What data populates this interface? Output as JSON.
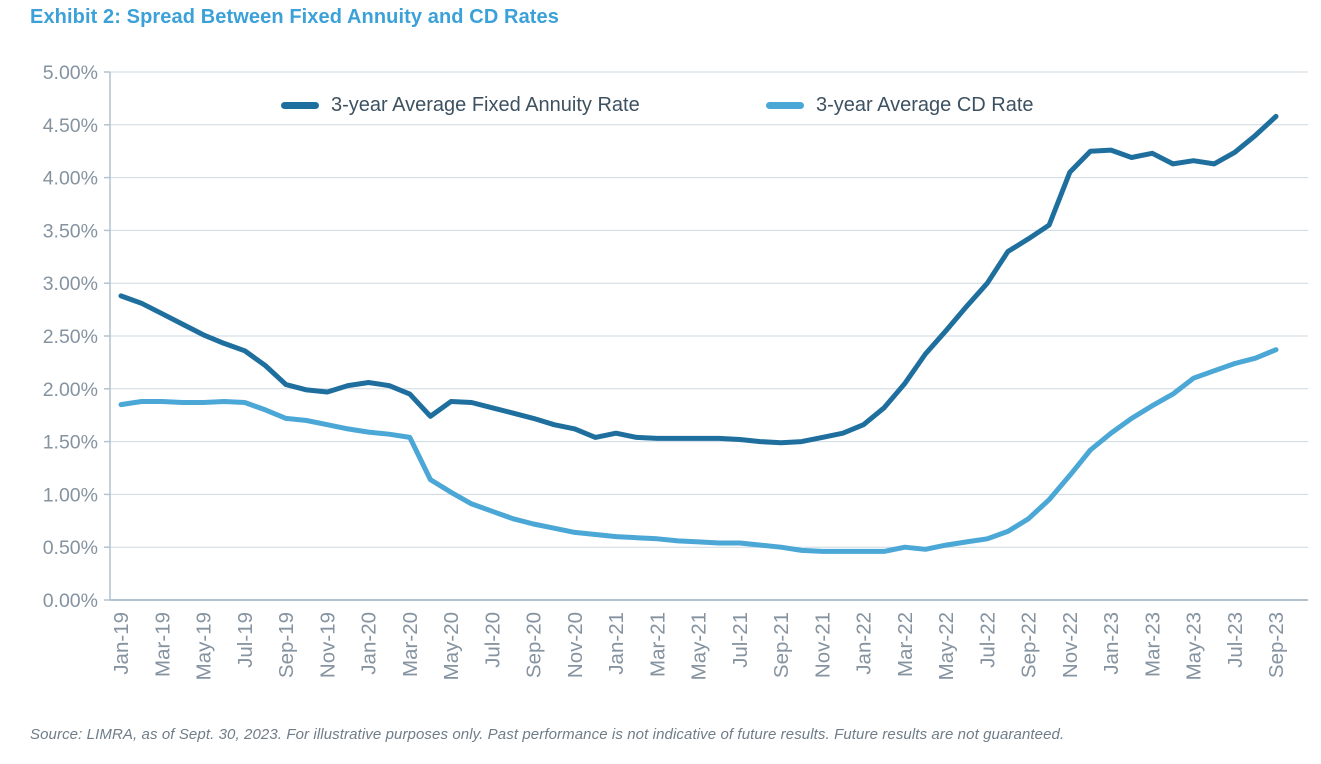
{
  "page": {
    "title": "Exhibit 2: Spread Between Fixed Annuity and CD Rates",
    "source_note": "Source: LIMRA, as of Sept. 30, 2023. For illustrative purposes only. Past performance is not indicative of future results. Future results are not guaranteed."
  },
  "colors": {
    "title": "#3ba1d8",
    "annuity_line": "#1f6f9e",
    "cd_line": "#4ba7d5",
    "axis_text": "#8593a0",
    "legend_text": "#3d5160",
    "gridline": "#ccd9e2",
    "axis_line": "#b2c2ce",
    "source_text": "#6f7d89",
    "background": "#ffffff"
  },
  "chart_data": {
    "type": "line",
    "title": "Exhibit 2: Spread Between Fixed Annuity and CD Rates",
    "xlabel": "",
    "ylabel": "",
    "ylim": [
      0,
      5
    ],
    "y_tick_step": 0.5,
    "grid": "horizontal",
    "legend_position": "top-inside",
    "y_tick_labels": [
      "5.00%",
      "4.50%",
      "4.00%",
      "3.50%",
      "3.00%",
      "2.50%",
      "2.00%",
      "1.50%",
      "1.00%",
      "0.50%",
      "0.00%"
    ],
    "x_tick_labels": [
      "Jan-19",
      "Mar-19",
      "May-19",
      "Jul-19",
      "Sep-19",
      "Nov-19",
      "Jan-20",
      "Mar-20",
      "May-20",
      "Jul-20",
      "Sep-20",
      "Nov-20",
      "Jan-21",
      "Mar-21",
      "May-21",
      "Jul-21",
      "Sep-21",
      "Nov-21",
      "Jan-22",
      "Mar-22",
      "May-22",
      "Jul-22",
      "Sep-22",
      "Nov-22",
      "Jan-23",
      "Mar-23",
      "May-23",
      "Jul-23",
      "Sep-23"
    ],
    "categories": [
      "Jan-19",
      "Feb-19",
      "Mar-19",
      "Apr-19",
      "May-19",
      "Jun-19",
      "Jul-19",
      "Aug-19",
      "Sep-19",
      "Oct-19",
      "Nov-19",
      "Dec-19",
      "Jan-20",
      "Feb-20",
      "Mar-20",
      "Apr-20",
      "May-20",
      "Jun-20",
      "Jul-20",
      "Aug-20",
      "Sep-20",
      "Oct-20",
      "Nov-20",
      "Dec-20",
      "Jan-21",
      "Feb-21",
      "Mar-21",
      "Apr-21",
      "May-21",
      "Jun-21",
      "Jul-21",
      "Aug-21",
      "Sep-21",
      "Oct-21",
      "Nov-21",
      "Dec-21",
      "Jan-22",
      "Feb-22",
      "Mar-22",
      "Apr-22",
      "May-22",
      "Jun-22",
      "Jul-22",
      "Aug-22",
      "Sep-22",
      "Oct-22",
      "Nov-22",
      "Dec-22",
      "Jan-23",
      "Feb-23",
      "Mar-23",
      "Apr-23",
      "May-23",
      "Jun-23",
      "Jul-23",
      "Aug-23",
      "Sep-23"
    ],
    "series": [
      {
        "name": "3-year Average Fixed Annuity Rate",
        "color": "#1f6f9e",
        "values": [
          2.88,
          2.81,
          2.71,
          2.61,
          2.51,
          2.43,
          2.36,
          2.22,
          2.04,
          1.99,
          1.97,
          2.03,
          2.06,
          2.03,
          1.95,
          1.74,
          1.88,
          1.87,
          1.82,
          1.77,
          1.72,
          1.66,
          1.62,
          1.54,
          1.58,
          1.54,
          1.53,
          1.53,
          1.53,
          1.53,
          1.52,
          1.5,
          1.49,
          1.5,
          1.54,
          1.58,
          1.66,
          1.82,
          2.05,
          2.33,
          2.55,
          2.78,
          3.0,
          3.3,
          3.42,
          3.55,
          4.05,
          4.25,
          4.26,
          4.19,
          4.23,
          4.13,
          4.16,
          4.13,
          4.24,
          4.4,
          4.58
        ]
      },
      {
        "name": "3-year Average CD Rate",
        "color": "#4ba7d5",
        "values": [
          1.85,
          1.88,
          1.88,
          1.87,
          1.87,
          1.88,
          1.87,
          1.8,
          1.72,
          1.7,
          1.66,
          1.62,
          1.59,
          1.57,
          1.54,
          1.14,
          1.02,
          0.91,
          0.84,
          0.77,
          0.72,
          0.68,
          0.64,
          0.62,
          0.6,
          0.59,
          0.58,
          0.56,
          0.55,
          0.54,
          0.54,
          0.52,
          0.5,
          0.47,
          0.46,
          0.46,
          0.46,
          0.46,
          0.5,
          0.48,
          0.52,
          0.55,
          0.58,
          0.65,
          0.77,
          0.95,
          1.18,
          1.42,
          1.58,
          1.72,
          1.84,
          1.95,
          2.1,
          2.17,
          2.24,
          2.29,
          2.37
        ]
      }
    ]
  }
}
